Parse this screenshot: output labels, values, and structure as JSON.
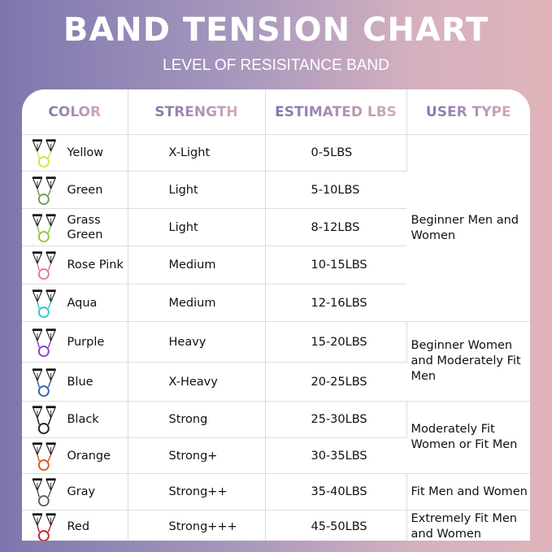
{
  "title": "Band Tension Chart",
  "subtitle": "LEVEL OF RESISITANCE BAND",
  "headers": [
    "Color",
    "Strength",
    "Estimated LBS",
    "User Type"
  ],
  "rows": [
    {
      "color": "Yellow",
      "hex": "#d6e03c",
      "strength": "X-Light",
      "lbs": "0-5LBS"
    },
    {
      "color": "Green",
      "hex": "#6e9a4c",
      "strength": "Light",
      "lbs": "5-10LBS"
    },
    {
      "color": "Grass Green",
      "hex": "#8cc63e",
      "strength": "Light",
      "lbs": "8-12LBS"
    },
    {
      "color": "Rose Pink",
      "hex": "#d67aa8",
      "strength": "Medium",
      "lbs": "10-15LBS"
    },
    {
      "color": "Aqua",
      "hex": "#2ec6bc",
      "strength": "Medium",
      "lbs": "12-16LBS"
    },
    {
      "color": "Purple",
      "hex": "#8a3cc0",
      "strength": "Heavy",
      "lbs": "15-20LBS"
    },
    {
      "color": "Blue",
      "hex": "#2a62aa",
      "strength": "X-Heavy",
      "lbs": "20-25LBS"
    },
    {
      "color": "Black",
      "hex": "#1c1c1c",
      "strength": "Strong",
      "lbs": "25-30LBS"
    },
    {
      "color": "Orange",
      "hex": "#e0501e",
      "strength": "Strong+",
      "lbs": "30-35LBS"
    },
    {
      "color": "Gray",
      "hex": "#5e5e5e",
      "strength": "Strong++",
      "lbs": "35-40LBS"
    },
    {
      "color": "Red",
      "hex": "#c0202e",
      "strength": "Strong+++",
      "lbs": "45-50LBS"
    }
  ],
  "user_types": [
    {
      "label": "Beginner Men and Women",
      "rows": 5
    },
    {
      "label": "Beginner Women and Moderately Fit Men",
      "rows": 2
    },
    {
      "label": "Moderately Fit Women or Fit Men",
      "rows": 2
    },
    {
      "label": "Fit Men and Women",
      "rows": 1
    },
    {
      "label": "Extremely Fit Men and Women",
      "rows": 1
    }
  ]
}
